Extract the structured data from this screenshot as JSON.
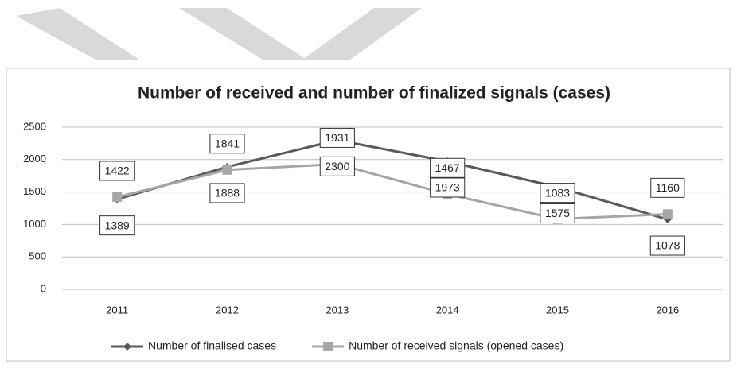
{
  "chart_data": {
    "type": "line",
    "title": "Number of received and number of finalized signals (cases)",
    "categories": [
      "2011",
      "2012",
      "2013",
      "2014",
      "2015",
      "2016"
    ],
    "series": [
      {
        "name": "Number of finalised cases",
        "color": "#595959",
        "marker": "diamond",
        "label_position": "below",
        "values": [
          1389,
          1888,
          2300,
          1973,
          1575,
          1078
        ]
      },
      {
        "name": "Number of received signals (opened cases)",
        "color": "#a6a6a6",
        "marker": "square",
        "label_position": "above",
        "values": [
          1422,
          1841,
          1931,
          1467,
          1083,
          1160
        ]
      }
    ],
    "ylim": [
      0,
      2500
    ],
    "yticks": [
      0,
      500,
      1000,
      1500,
      2000,
      2500
    ],
    "grid": true,
    "legend": "bottom"
  }
}
